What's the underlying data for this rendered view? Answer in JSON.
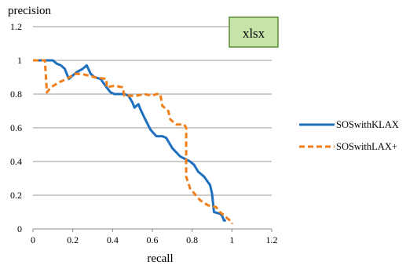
{
  "chart_data": {
    "type": "line",
    "title": "",
    "xlabel": "recall",
    "ylabel": "precision",
    "xlim": [
      0,
      1.2
    ],
    "ylim": [
      0,
      1.2
    ],
    "x_ticks": [
      "0",
      "0.2",
      "0.4",
      "0.6",
      "0.8",
      "1",
      "1.2"
    ],
    "y_ticks": [
      "0",
      "0.2",
      "0.4",
      "0.6",
      "0.8",
      "1",
      "1.2"
    ],
    "grid": "horizontal",
    "legend_position": "right",
    "annotation": "xlsx",
    "series": [
      {
        "name": "SOSwithKLAX",
        "color": "#1f6fbf",
        "style": "solid",
        "points": [
          [
            0.0,
            1.0
          ],
          [
            0.1,
            1.0
          ],
          [
            0.12,
            0.98
          ],
          [
            0.14,
            0.97
          ],
          [
            0.16,
            0.95
          ],
          [
            0.18,
            0.89
          ],
          [
            0.2,
            0.91
          ],
          [
            0.22,
            0.93
          ],
          [
            0.25,
            0.95
          ],
          [
            0.27,
            0.97
          ],
          [
            0.29,
            0.92
          ],
          [
            0.31,
            0.9
          ],
          [
            0.34,
            0.89
          ],
          [
            0.37,
            0.84
          ],
          [
            0.39,
            0.81
          ],
          [
            0.41,
            0.8
          ],
          [
            0.46,
            0.8
          ],
          [
            0.48,
            0.79
          ],
          [
            0.5,
            0.75
          ],
          [
            0.51,
            0.72
          ],
          [
            0.53,
            0.74
          ],
          [
            0.54,
            0.71
          ],
          [
            0.56,
            0.66
          ],
          [
            0.59,
            0.59
          ],
          [
            0.62,
            0.55
          ],
          [
            0.65,
            0.55
          ],
          [
            0.67,
            0.54
          ],
          [
            0.7,
            0.48
          ],
          [
            0.74,
            0.43
          ],
          [
            0.79,
            0.4
          ],
          [
            0.81,
            0.38
          ],
          [
            0.83,
            0.34
          ],
          [
            0.86,
            0.31
          ],
          [
            0.89,
            0.26
          ],
          [
            0.9,
            0.21
          ],
          [
            0.91,
            0.1
          ],
          [
            0.94,
            0.09
          ],
          [
            0.95,
            0.08
          ],
          [
            0.96,
            0.05
          ],
          [
            0.97,
            0.05
          ]
        ]
      },
      {
        "name": "SOSwithLAX+",
        "color": "#f07f1a",
        "style": "dashed",
        "points": [
          [
            0.0,
            1.0
          ],
          [
            0.06,
            1.0
          ],
          [
            0.07,
            0.81
          ],
          [
            0.09,
            0.84
          ],
          [
            0.13,
            0.87
          ],
          [
            0.17,
            0.89
          ],
          [
            0.21,
            0.92
          ],
          [
            0.24,
            0.92
          ],
          [
            0.28,
            0.91
          ],
          [
            0.31,
            0.9
          ],
          [
            0.37,
            0.89
          ],
          [
            0.37,
            0.84
          ],
          [
            0.41,
            0.85
          ],
          [
            0.45,
            0.84
          ],
          [
            0.46,
            0.79
          ],
          [
            0.52,
            0.79
          ],
          [
            0.56,
            0.8
          ],
          [
            0.6,
            0.79
          ],
          [
            0.62,
            0.8
          ],
          [
            0.64,
            0.8
          ],
          [
            0.65,
            0.73
          ],
          [
            0.68,
            0.7
          ],
          [
            0.69,
            0.65
          ],
          [
            0.72,
            0.62
          ],
          [
            0.76,
            0.62
          ],
          [
            0.77,
            0.6
          ],
          [
            0.77,
            0.31
          ],
          [
            0.79,
            0.24
          ],
          [
            0.84,
            0.17
          ],
          [
            0.88,
            0.14
          ],
          [
            0.92,
            0.13
          ],
          [
            0.94,
            0.1
          ],
          [
            0.97,
            0.07
          ],
          [
            0.99,
            0.05
          ],
          [
            1.0,
            0.04
          ],
          [
            1.0,
            0.03
          ]
        ]
      }
    ]
  }
}
